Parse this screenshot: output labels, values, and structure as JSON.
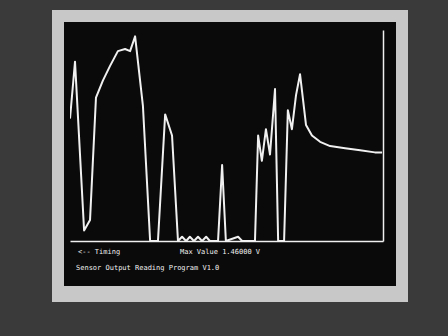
{
  "chart_data": {
    "type": "line",
    "title": "Sensor Output Reading Program V1.0",
    "xlabel": "<-- Timing",
    "annotations": [
      "Max Value 1.46000 V"
    ],
    "x": [
      0,
      1.6,
      4.5,
      6.4,
      8.3,
      10.5,
      12.8,
      15.3,
      17.6,
      19.2,
      20.8,
      23.3,
      25.6,
      28.1,
      30.4,
      32.6,
      34.5,
      35.8,
      37.1,
      38.3,
      39.6,
      40.9,
      42.2,
      43.5,
      44.7,
      47.3,
      48.6,
      49.8,
      53.7,
      55,
      59.1,
      60.1,
      61.3,
      62.6,
      63.9,
      65.5,
      66.5,
      68.4,
      69.6,
      70.9,
      72.2,
      73.5,
      75.4,
      77.3,
      79.9,
      83.1,
      87.9,
      92.7,
      97.4,
      99.7
    ],
    "values": [
      58,
      85,
      5,
      10,
      68,
      76,
      83,
      90,
      91,
      90,
      97,
      64,
      0,
      0,
      60,
      50,
      0,
      2,
      0,
      2,
      0,
      2,
      0,
      2,
      0,
      0,
      36,
      0,
      2,
      0,
      0,
      50,
      38,
      53,
      41,
      72,
      0,
      0,
      62,
      53,
      69,
      79,
      55,
      50,
      47,
      45,
      44,
      43,
      42,
      42
    ],
    "xlim": [
      0,
      100
    ],
    "ylim": [
      0,
      100
    ],
    "color": "#f0f0f0",
    "tick_labels": false,
    "grid": false
  }
}
